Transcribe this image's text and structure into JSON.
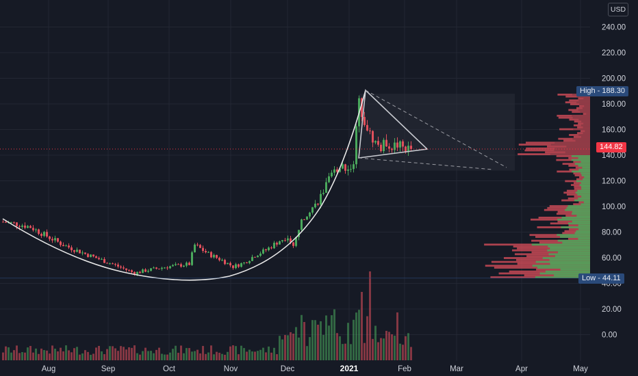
{
  "header": {
    "currency": "USD"
  },
  "colors": {
    "up": "#4aa85c",
    "down": "#e0505c",
    "bg": "#161a25",
    "grid": "#232733"
  },
  "chart_data": {
    "type": "candlestick",
    "y_ticks": [
      "240.00",
      "220.00",
      "200.00",
      "180.00",
      "160.00",
      "140.00",
      "120.00",
      "100.00",
      "80.00",
      "60.00",
      "40.00",
      "20.00",
      "0.00"
    ],
    "y_tick_values": [
      240,
      220,
      200,
      180,
      160,
      140,
      120,
      100,
      80,
      60,
      40,
      20,
      0
    ],
    "x_ticks": [
      "Aug",
      "Sep",
      "Oct",
      "Nov",
      "Dec",
      "2021",
      "Feb",
      "Mar",
      "Apr",
      "May"
    ],
    "high_label": "High - 188.30",
    "low_label": "Low - 44.11",
    "last_price_label": "144.82",
    "high": 188.3,
    "low": 44.11,
    "last": 144.82,
    "annotations": [
      "rounded-bottom arc",
      "symmetrical triangle",
      "projection box",
      "volume profile"
    ]
  }
}
